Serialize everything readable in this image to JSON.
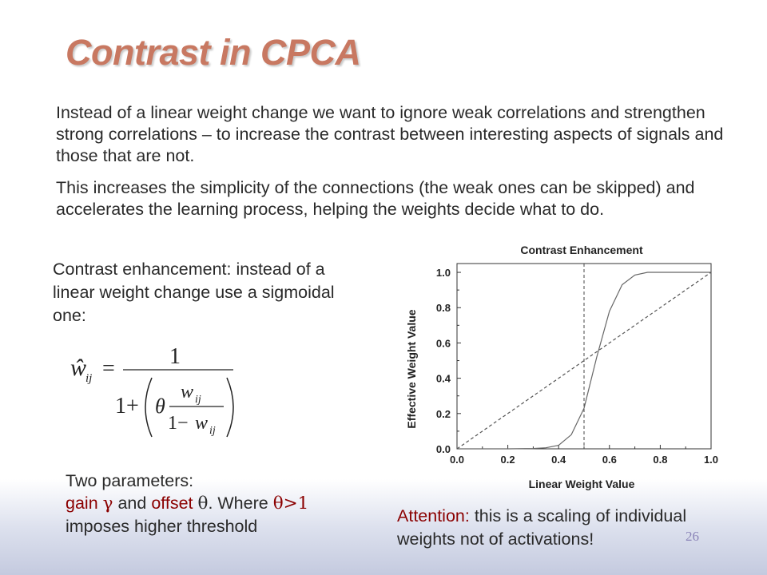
{
  "slide": {
    "title": "Contrast in CPCA",
    "paragraph1": "Instead of a linear weight change we want to ignore weak correlations and strengthen strong correlations – to increase the contrast between interesting aspects of signals and those that are not.",
    "paragraph2": "This increases the simplicity of the connections (the weak ones can be skipped) and accelerates the learning process, helping the weights decide what to do.",
    "enhancement_text": "Contrast enhancement: instead of a linear weight change use a sigmoidal one:",
    "params_heading": "Two parameters:",
    "params_gain": "gain ",
    "params_gain_symbol": "γ",
    "params_and": " and ",
    "params_offset": "offset ",
    "params_offset_symbol": "θ",
    "params_where": ". Where ",
    "params_condition": "θ>1",
    "params_line2": "imposes higher threshold",
    "attention_label": "Attention:",
    "attention_text": " this is a scaling of individual weights not of activations",
    "attention_excl": "!",
    "page_number": "26"
  },
  "formula": {
    "lhs": "ŵ",
    "lhs_sub": "ij",
    "equals": "=",
    "numerator": "1",
    "one_plus": "1+",
    "theta": "θ",
    "inner_num": "w",
    "inner_num_sub": "ij",
    "inner_den_one": "1−",
    "inner_den": "w",
    "inner_den_sub": "ij"
  },
  "chart_data": {
    "type": "line",
    "title": "Contrast Enhancement",
    "xlabel": "Linear Weight Value",
    "ylabel": "Effective Weight Value",
    "xlim": [
      0,
      1
    ],
    "ylim": [
      0,
      1.05
    ],
    "xticks": [
      "0.0",
      "0.2",
      "0.4",
      "0.6",
      "0.8",
      "1.0"
    ],
    "yticks": [
      "0.0",
      "0.2",
      "0.4",
      "0.6",
      "0.8",
      "1.0"
    ],
    "grid": false,
    "reference_vline": 0.5,
    "series": [
      {
        "style": "solid",
        "x": [
          0,
          0.1,
          0.2,
          0.3,
          0.35,
          0.4,
          0.45,
          0.5,
          0.55,
          0.6,
          0.65,
          0.7,
          0.75,
          0.8,
          0.9,
          1.0
        ],
        "y": [
          0,
          0,
          0.0,
          0.002,
          0.006,
          0.02,
          0.08,
          0.23,
          0.52,
          0.78,
          0.93,
          0.985,
          1.0,
          1.0,
          1.0,
          1.0
        ]
      },
      {
        "style": "dashed",
        "x": [
          0,
          1
        ],
        "y": [
          0,
          1
        ]
      }
    ]
  }
}
